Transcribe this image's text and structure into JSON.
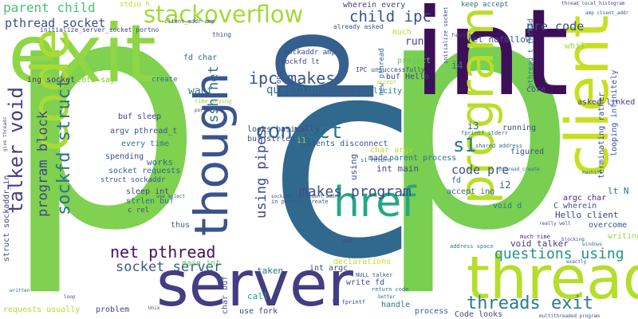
{
  "words": [
    {
      "text": "p",
      "color": "#7fd14f"
    },
    {
      "text": "p",
      "color": "#78cf52"
    },
    {
      "text": "c",
      "color": "#31688e"
    },
    {
      "text": "int",
      "color": "#3e0f59"
    },
    {
      "text": "p",
      "color": "#355f8d"
    },
    {
      "text": "exit",
      "color": "#8ed645"
    },
    {
      "text": "server",
      "color": "#433d84"
    },
    {
      "text": "thread",
      "color": "#b5de2b"
    },
    {
      "text": "client",
      "color": "#c6e021"
    },
    {
      "text": "code",
      "color": "#a7db35"
    },
    {
      "text": "program",
      "color": "#b8de29"
    },
    {
      "text": "though",
      "color": "#3a548c"
    },
    {
      "text": "href",
      "color": "#26a784"
    },
    {
      "text": "stackoverflow",
      "color": "#a3da37"
    },
    {
      "text": "connect",
      "color": "#2c738e"
    },
    {
      "text": "talker void",
      "color": "#433e85"
    },
    {
      "text": "sockfd struct",
      "color": "#2d718e"
    },
    {
      "text": "threads exit",
      "color": "#287c8e"
    },
    {
      "text": "questions using",
      "color": "#20928c"
    },
    {
      "text": "net pthread",
      "color": "#471063"
    },
    {
      "text": "ipc makes",
      "color": "#3a538b"
    },
    {
      "text": "makes program",
      "color": "#3c4f8a"
    },
    {
      "text": "socket server",
      "color": "#38598c"
    },
    {
      "text": "program block",
      "color": "#3f4788"
    },
    {
      "text": "using pipes",
      "color": "#3f4889"
    },
    {
      "text": "ssh net",
      "color": "#2e6f8e"
    },
    {
      "text": "parent child",
      "color": "#4ac16d"
    },
    {
      "text": "pthread socket",
      "color": "#3d4e8a"
    },
    {
      "text": "child ipc",
      "color": "#3b518b"
    },
    {
      "text": "pre code",
      "color": "#3e4a89"
    },
    {
      "text": "s1",
      "color": "#2a788e"
    },
    {
      "text": "code pre",
      "color": "#3c508b"
    },
    {
      "text": "question",
      "color": "#2c728e"
    },
    {
      "text": "want",
      "color": "#29798e"
    },
    {
      "text": "works",
      "color": "#2e6e8e"
    },
    {
      "text": "struct sockaddr_in",
      "color": "#3f4788"
    },
    {
      "text": "requests usually",
      "color": "#b0dd2f"
    },
    {
      "text": "lots say",
      "color": "#7fd34e"
    },
    {
      "text": "run",
      "color": "#433e85"
    },
    {
      "text": "i2",
      "color": "#31668e"
    },
    {
      "text": "i3",
      "color": "#355f8d"
    },
    {
      "text": "i4",
      "color": "#2a768e"
    },
    {
      "text": "rel nofollow",
      "color": "#3b528b"
    },
    {
      "text": "int main",
      "color": "#3f4889"
    },
    {
      "text": "using",
      "color": "#3a548c"
    },
    {
      "text": "buf Hello",
      "color": "#404688"
    },
    {
      "text": "ing socket",
      "color": "#46337f"
    },
    {
      "text": "project",
      "color": "#5ec962"
    },
    {
      "text": "simplicity",
      "color": "#2c718e"
    },
    {
      "text": "create",
      "color": "#2e6d8e"
    },
    {
      "text": "lt N",
      "color": "#2d708e"
    },
    {
      "text": "Hello client",
      "color": "#424086"
    },
    {
      "text": "void talker",
      "color": "#443983"
    },
    {
      "text": "writing",
      "color": "#a0da39"
    },
    {
      "text": "overcome",
      "color": "#39568c"
    },
    {
      "text": "C wherein",
      "color": "#3b528b"
    },
    {
      "text": "argc char",
      "color": "#482979"
    },
    {
      "text": "void d",
      "color": "#2a778e"
    },
    {
      "text": "accept ing",
      "color": "#31678e"
    },
    {
      "text": "fd",
      "color": "#2f6c8e"
    },
    {
      "text": "taken",
      "color": "#2e6e8e"
    },
    {
      "text": "call",
      "color": "#1fa088"
    },
    {
      "text": "use fork",
      "color": "#3f4788"
    },
    {
      "text": "char buf",
      "color": "#38588c"
    },
    {
      "text": "handle",
      "color": "#2c738e"
    },
    {
      "text": "process",
      "color": "#31668e"
    },
    {
      "text": "Code looks",
      "color": "#3e4989"
    },
    {
      "text": "write fd",
      "color": "#3c4f8a"
    },
    {
      "text": "int argc",
      "color": "#3d4d8a"
    },
    {
      "text": "declarations",
      "color": "#c2df23"
    },
    {
      "text": "problem",
      "color": "#3e4c8a"
    },
    {
      "text": "main int",
      "color": "#5ec962"
    },
    {
      "text": "socket requests",
      "color": "#31688e"
    },
    {
      "text": "struct sockaddr",
      "color": "#3a548c"
    },
    {
      "text": "sleep int",
      "color": "#3f4788"
    },
    {
      "text": "strlen buf",
      "color": "#2d708e"
    },
    {
      "text": "c rel",
      "color": "#3d4e8a"
    },
    {
      "text": "thus",
      "color": "#31668e"
    },
    {
      "text": "spending",
      "color": "#3c4f8a"
    },
    {
      "text": "every time",
      "color": "#2a788e"
    },
    {
      "text": "argv pthread_t",
      "color": "#3b528b"
    },
    {
      "text": "buf sleep",
      "color": "#3f4788"
    },
    {
      "text": "buf strlen",
      "color": "#3e4a89"
    },
    {
      "text": "looks basically",
      "color": "#414487"
    },
    {
      "text": "clients disconnect",
      "color": "#3a548c"
    },
    {
      "text": "char argv",
      "color": "#b5de2b"
    },
    {
      "text": "parent process",
      "color": "#2c728e"
    },
    {
      "text": "made",
      "color": "#3c4f8a"
    },
    {
      "text": "i1",
      "color": "#9bd93c"
    },
    {
      "text": "running",
      "color": "#3d4e8a"
    },
    {
      "text": "figured",
      "color": "#3b518b"
    },
    {
      "text": "core",
      "color": "#3f4788"
    },
    {
      "text": "asked linked",
      "color": "#414287"
    },
    {
      "text": "terminating rather",
      "color": "#3e4c8a"
    },
    {
      "text": "looping infinitely",
      "color": "#3b528b"
    },
    {
      "text": "pthread_t thread",
      "color": "#2a788e"
    },
    {
      "text": "whil",
      "color": "#9bd93c"
    },
    {
      "text": "new pthread",
      "color": "#2f6b8e"
    },
    {
      "text": "wrong",
      "color": "#3b528b"
    },
    {
      "text": "sockaddr amp",
      "color": "#3f4788"
    },
    {
      "text": "sockfd lt",
      "color": "#404588"
    },
    {
      "text": "fd char",
      "color": "#2f6c8e"
    },
    {
      "text": "wherein every",
      "color": "#414487"
    },
    {
      "text": "much",
      "color": "#b8de29"
    },
    {
      "text": "already asked",
      "color": "#3b528b"
    },
    {
      "text": "keep accept",
      "color": "#2d708e"
    },
    {
      "text": "thing",
      "color": "#3c4f8a"
    },
    {
      "text": "Lets say",
      "color": "#93d741"
    },
    {
      "text": "stdio h",
      "color": "#b5de2b"
    },
    {
      "text": "IPC unsuccessfully",
      "color": "#3f4788"
    },
    {
      "text": "initialize_server_socket portno",
      "color": "#404588"
    },
    {
      "text": "client_addr amp",
      "color": "#3e4c8a"
    },
    {
      "text": "initialize socket",
      "color": "#3e4a89"
    },
    {
      "text": "function",
      "color": "#414487"
    },
    {
      "text": "amp client_addr",
      "color": "#3a548c"
    },
    {
      "text": "fprintf stderr",
      "color": "#2d708e"
    },
    {
      "text": "shared address",
      "color": "#2c718e"
    },
    {
      "text": "s1 return",
      "color": "#2e6e8e"
    },
    {
      "text": "pthread_create",
      "color": "#2f6c8e"
    },
    {
      "text": "in pthread_create",
      "color": "#3a548c"
    },
    {
      "text": "return code",
      "color": "#2d708e"
    },
    {
      "text": "NULL talker",
      "color": "#3b528b"
    },
    {
      "text": "lt fprintf",
      "color": "#3f4788"
    },
    {
      "text": "much time",
      "color": "#482878"
    },
    {
      "text": "address space",
      "color": "#2a788e"
    },
    {
      "text": "multithreaded program",
      "color": "#3b528b"
    },
    {
      "text": "machine",
      "color": "#2a778e"
    },
    {
      "text": "give threads",
      "color": "#3c4f8a"
    },
    {
      "text": "portno amp",
      "color": "#414487"
    },
    {
      "text": "time trying",
      "color": "#93d741"
    },
    {
      "text": "use select",
      "color": "#3b528b"
    },
    {
      "text": "written",
      "color": "#2e6e8e"
    },
    {
      "text": "loop",
      "color": "#3f4788"
    },
    {
      "text": "Unix",
      "color": "#404588"
    },
    {
      "text": "sockaddr_in client_addr",
      "color": "#3b528b"
    },
    {
      "text": "better",
      "color": "#31668e"
    },
    {
      "text": "accept",
      "color": "#b5de2b"
    },
    {
      "text": "use",
      "color": "#3f4788"
    },
    {
      "text": "thread_local_histogram",
      "color": "#414487"
    },
    {
      "text": "blocking",
      "color": "#3b528b"
    },
    {
      "text": "windows",
      "color": "#2a788e"
    },
    {
      "text": "exactly",
      "color": "#3c4f8a"
    },
    {
      "text": "really well",
      "color": "#3f4788"
    }
  ]
}
